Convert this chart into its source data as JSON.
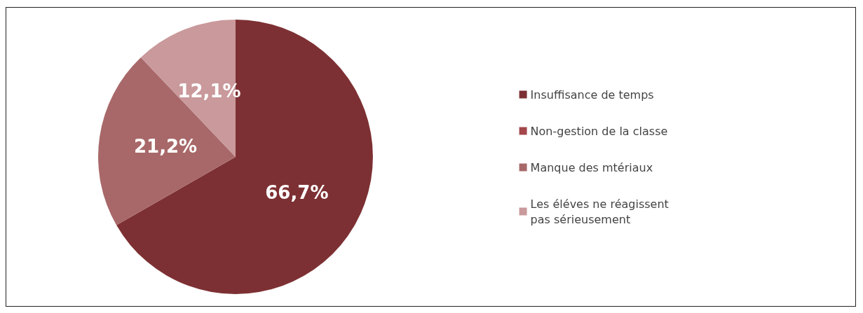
{
  "chart_data": {
    "type": "pie",
    "categories": [
      "Insuffisance de temps",
      "Non-gestion de la classe",
      "Manque des mtériaux",
      "Les éléves ne réagissent\npas sérieusement"
    ],
    "values": [
      66.7,
      0,
      21.2,
      12.1
    ],
    "value_labels": [
      "66,7%",
      null,
      "21,2%",
      "12,1%"
    ],
    "colors": [
      "#7d3033",
      "#a3474b",
      "#a86869",
      "#c9999b"
    ],
    "legend": "right"
  }
}
